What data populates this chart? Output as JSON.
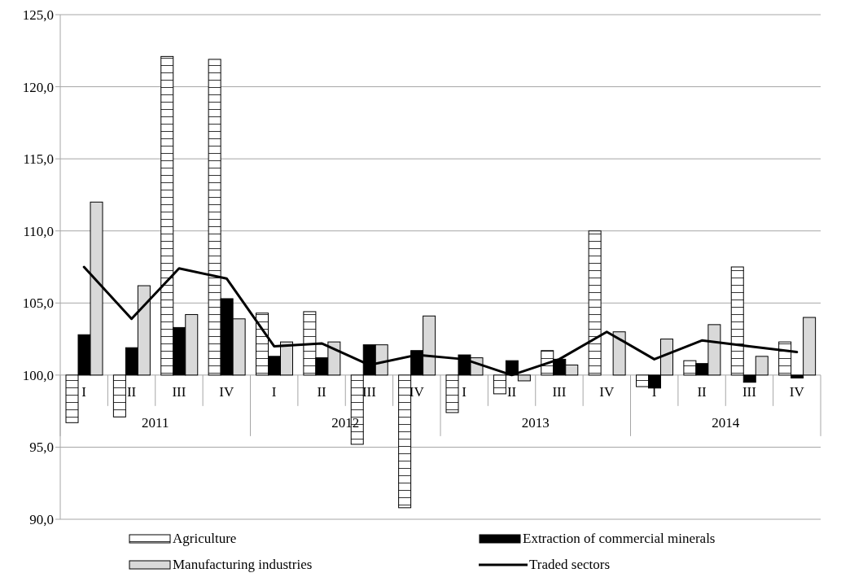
{
  "chart_data": {
    "type": "bar",
    "categories": [
      "I",
      "II",
      "III",
      "IV",
      "I",
      "II",
      "III",
      "IV",
      "I",
      "II",
      "III",
      "IV",
      "I",
      "II",
      "III",
      "IV"
    ],
    "annotations": [
      "2011",
      "2012",
      "2013",
      "2014"
    ],
    "series": [
      {
        "name": "Agriculture",
        "color": "#ffffff",
        "base": [
          100,
          100,
          100,
          100,
          100,
          100,
          100,
          100,
          100,
          100,
          100,
          100,
          100,
          100,
          100,
          100
        ],
        "values": [
          -3.3,
          -2.9,
          22.1,
          21.9,
          4.3,
          4.4,
          -4.8,
          -9.2,
          -2.6,
          -1.3,
          1.7,
          10.0,
          -0.8,
          1.0,
          7.5,
          2.3
        ]
      },
      {
        "name": "Extraction of commercial minerals",
        "color": "#000000",
        "base": [
          100,
          100,
          100,
          100,
          100,
          100,
          100,
          100,
          100,
          100,
          100,
          null,
          100,
          100,
          100,
          100
        ],
        "values": [
          2.8,
          1.9,
          3.3,
          5.3,
          1.3,
          1.2,
          2.1,
          1.7,
          1.4,
          1.0,
          1.1,
          null,
          -0.9,
          0.8,
          -0.5,
          -0.2
        ]
      },
      {
        "name": "Manufacturing industries",
        "color": "#d9d9d9",
        "base": [
          100,
          100,
          100,
          100,
          100,
          100,
          100,
          100,
          100,
          100,
          100,
          100,
          100,
          100,
          100,
          100
        ],
        "values": [
          12.0,
          6.2,
          4.2,
          3.9,
          2.3,
          2.3,
          2.1,
          4.1,
          1.2,
          -0.4,
          0.7,
          3.0,
          2.5,
          3.5,
          1.3,
          4.0
        ]
      },
      {
        "name": "Traded sectors",
        "type": "line",
        "color": "#000000",
        "values": [
          107.5,
          103.9,
          107.4,
          106.7,
          102.0,
          102.2,
          100.7,
          101.4,
          101.1,
          100.0,
          101.1,
          103.0,
          101.1,
          102.4,
          102.0,
          101.6
        ]
      }
    ],
    "ylim": [
      90,
      125
    ],
    "yticks": [
      {
        "value": 90,
        "label": "90,0"
      },
      {
        "value": 95,
        "label": "95,0"
      },
      {
        "value": 100,
        "label": "100,0"
      },
      {
        "value": 105,
        "label": "105,0"
      },
      {
        "value": 110,
        "label": "110,0"
      },
      {
        "value": 115,
        "label": "115,0"
      },
      {
        "value": 120,
        "label": "120,0"
      },
      {
        "value": 125,
        "label": "125,0"
      }
    ],
    "grid": "y",
    "legend": "bottom",
    "marker": "none"
  }
}
